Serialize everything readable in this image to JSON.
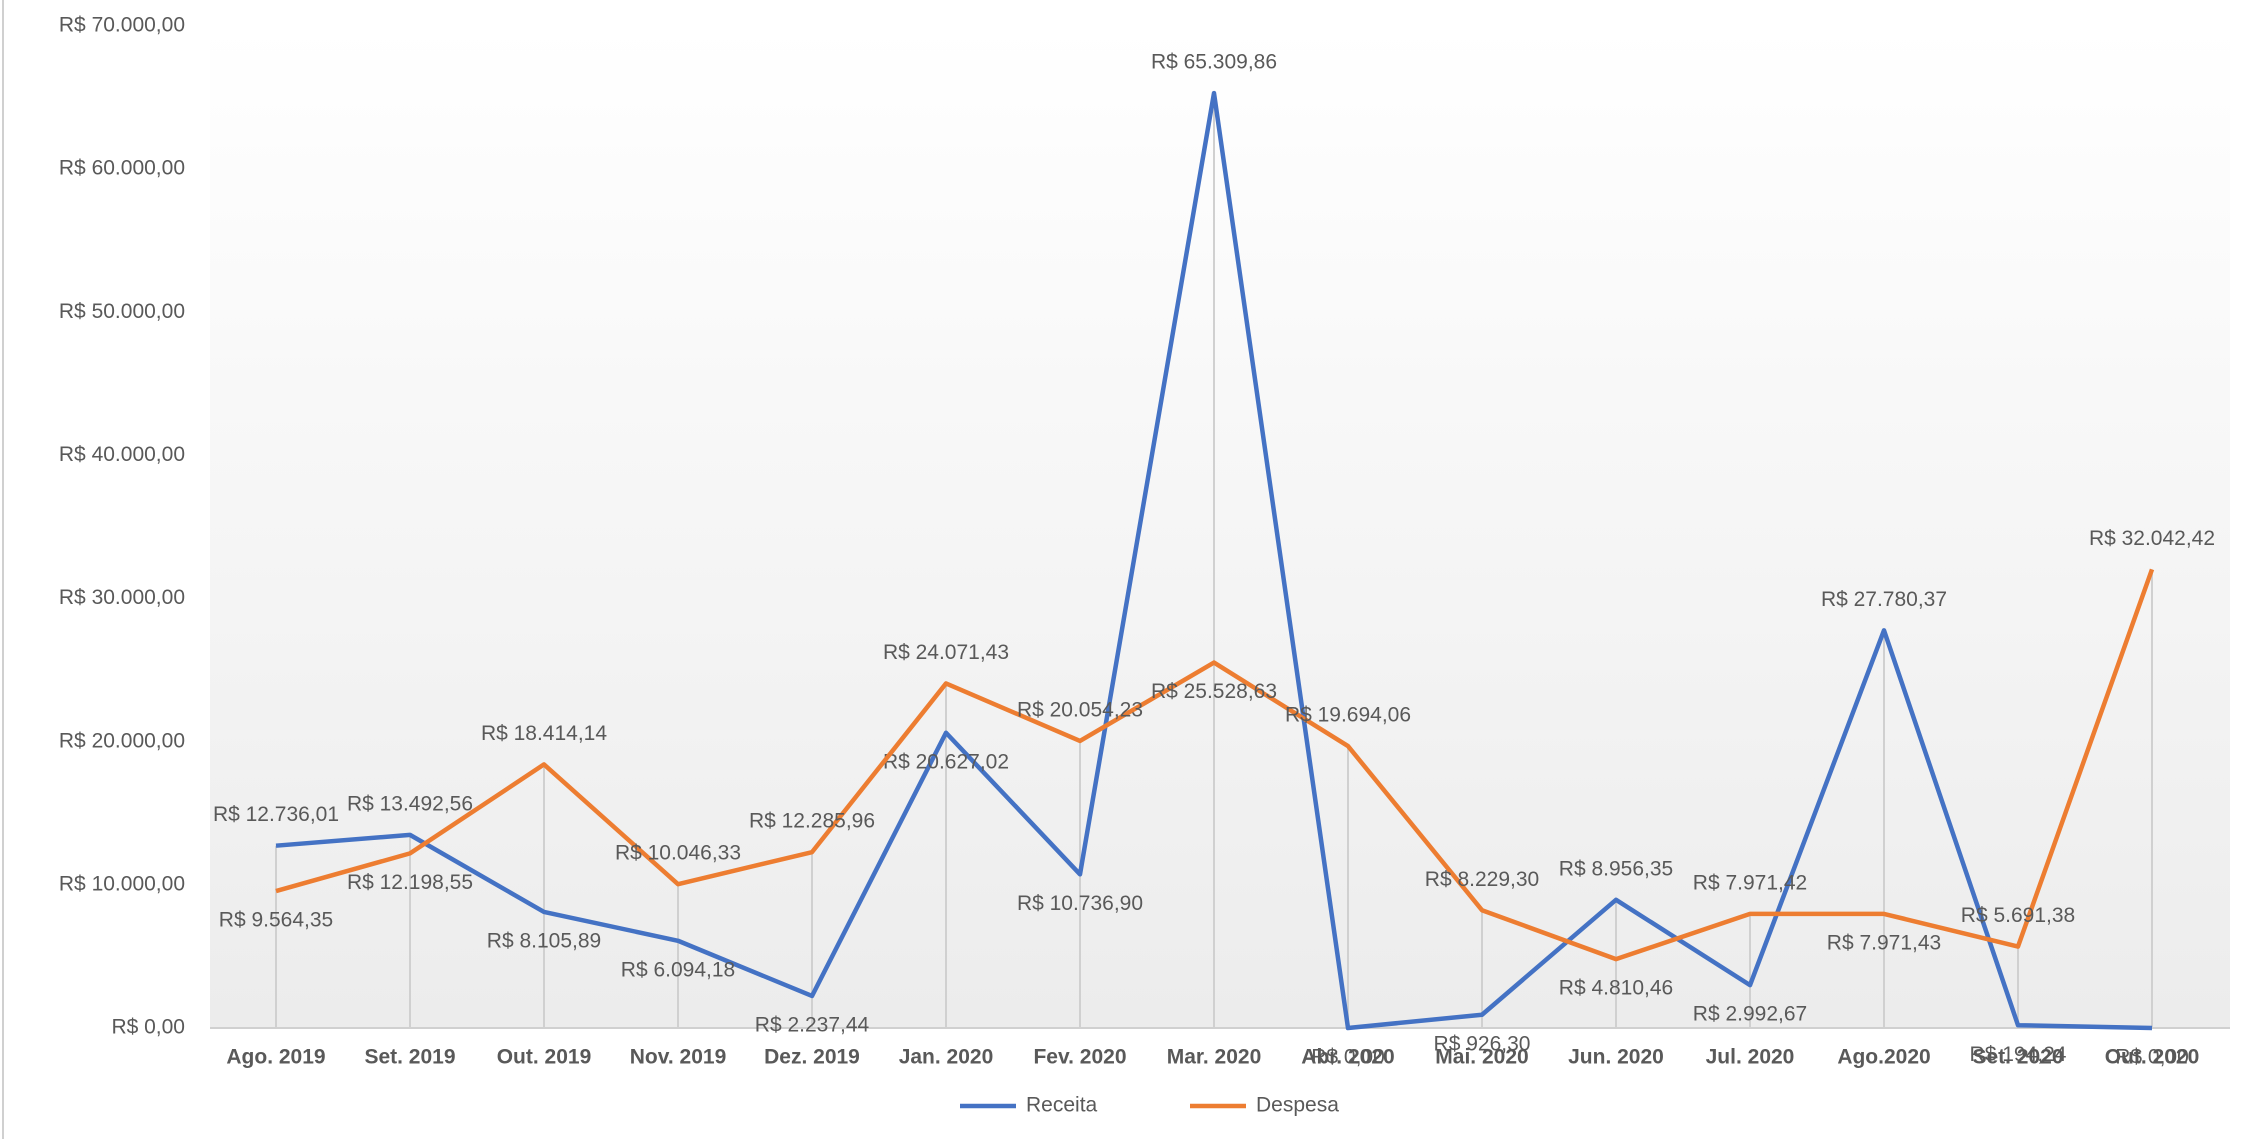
{
  "chart_data": {
    "type": "line",
    "categories": [
      "Ago. 2019",
      "Set. 2019",
      "Out. 2019",
      "Nov. 2019",
      "Dez. 2019",
      "Jan. 2020",
      "Fev. 2020",
      "Mar. 2020",
      "Abr. 2020",
      "Mai. 2020",
      "Jun. 2020",
      "Jul. 2020",
      "Ago.2020",
      "Set. 2020",
      "Out. 2020"
    ],
    "series": [
      {
        "name": "Receita",
        "color": "#4472c4",
        "values": [
          12736.01,
          13492.56,
          8105.89,
          6094.18,
          2237.44,
          20627.02,
          10736.9,
          65309.86,
          0.0,
          926.3,
          8956.35,
          2992.67,
          27780.37,
          194.24,
          0.0
        ],
        "value_labels": [
          "R$ 12.736,01",
          "R$ 13.492,56",
          "R$ 8.105,89",
          "R$ 6.094,18",
          "R$ 2.237,44",
          "R$ 20.627,02",
          "R$ 10.736,90",
          "R$ 65.309,86",
          "R$ 0,00",
          "R$ 926,30",
          "R$ 8.956,35",
          "R$ 2.992,67",
          "R$ 27.780,37",
          "R$ 194,24",
          "R$ 0,00"
        ]
      },
      {
        "name": "Despesa",
        "color": "#ed7d31",
        "values": [
          9564.35,
          12198.55,
          18414.14,
          10046.33,
          12285.96,
          24071.43,
          20054.23,
          25528.63,
          19694.06,
          8229.3,
          4810.46,
          7971.42,
          7971.43,
          5691.38,
          32042.42
        ],
        "value_labels": [
          "R$ 9.564,35",
          "R$ 12.198,55",
          "R$ 18.414,14",
          "R$ 10.046,33",
          "R$ 12.285,96",
          "R$ 24.071,43",
          "R$ 20.054,23",
          "R$ 25.528,63",
          "R$ 19.694,06",
          "R$ 8.229,30",
          "R$ 4.810,46",
          "R$ 7.971,42",
          "R$ 7.971,43",
          "R$ 5.691,38",
          "R$ 32.042,42"
        ]
      }
    ],
    "ylim": [
      0,
      70000
    ],
    "yticks": [
      {
        "value": 0,
        "label": "R$ 0,00"
      },
      {
        "value": 10000,
        "label": "R$ 10.000,00"
      },
      {
        "value": 20000,
        "label": "R$ 20.000,00"
      },
      {
        "value": 30000,
        "label": "R$ 30.000,00"
      },
      {
        "value": 40000,
        "label": "R$ 40.000,00"
      },
      {
        "value": 50000,
        "label": "R$ 50.000,00"
      },
      {
        "value": 60000,
        "label": "R$ 60.000,00"
      },
      {
        "value": 70000,
        "label": "R$ 70.000,00"
      }
    ],
    "grid": false,
    "legend": "bottom"
  }
}
